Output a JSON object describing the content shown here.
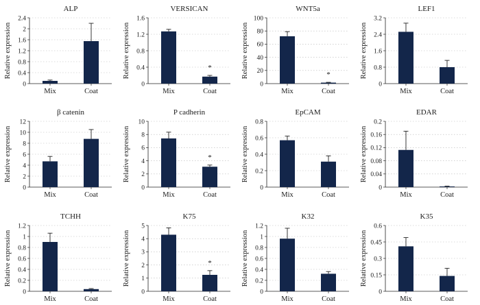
{
  "chart_data": [
    {
      "type": "bar",
      "title": "ALP",
      "ylabel": "Relative expression",
      "categories": [
        "Mix",
        "Coat"
      ],
      "values": [
        0.1,
        1.55
      ],
      "errors": [
        0.03,
        0.65
      ],
      "ylim": [
        0,
        2.4
      ],
      "ticks": [
        "0",
        "0.4",
        "0.8",
        "1.2",
        "1.6",
        "2",
        "2.4"
      ],
      "significance": [
        "",
        ""
      ],
      "grid": true
    },
    {
      "type": "bar",
      "title": "VERSICAN",
      "ylabel": "Relative expression",
      "categories": [
        "Mix",
        "Coat"
      ],
      "values": [
        1.27,
        0.17
      ],
      "errors": [
        0.05,
        0.03
      ],
      "ylim": [
        0,
        1.6
      ],
      "ticks": [
        "0",
        "0.4",
        "0.8",
        "1.2",
        "1.6"
      ],
      "significance": [
        "",
        "*"
      ],
      "grid": true
    },
    {
      "type": "bar",
      "title": "WNT5a",
      "ylabel": "Relative expression",
      "categories": [
        "Mix",
        "Coat"
      ],
      "values": [
        72,
        1.5
      ],
      "errors": [
        7,
        0.5
      ],
      "ylim": [
        0,
        100
      ],
      "ticks": [
        "0",
        "20",
        "40",
        "60",
        "80",
        "100"
      ],
      "significance": [
        "",
        "*"
      ],
      "grid": true
    },
    {
      "type": "bar",
      "title": "LEF1",
      "ylabel": "Relative expression",
      "categories": [
        "Mix",
        "Coat"
      ],
      "values": [
        2.52,
        0.8
      ],
      "errors": [
        0.42,
        0.33
      ],
      "ylim": [
        0,
        3.2
      ],
      "ticks": [
        "0",
        "0.8",
        "1.6",
        "2.4",
        "3.2"
      ],
      "significance": [
        "",
        ""
      ],
      "grid": true
    },
    {
      "type": "bar",
      "title": "β catenin",
      "ylabel": "Relative expression",
      "categories": [
        "Mix",
        "Coat"
      ],
      "values": [
        4.7,
        8.8
      ],
      "errors": [
        0.9,
        1.7
      ],
      "ylim": [
        0,
        12
      ],
      "ticks": [
        "0",
        "2",
        "4",
        "6",
        "8",
        "10",
        "12"
      ],
      "significance": [
        "",
        ""
      ],
      "grid": true
    },
    {
      "type": "bar",
      "title": "P cadherin",
      "ylabel": "Relative expression",
      "categories": [
        "Mix",
        "Coat"
      ],
      "values": [
        7.4,
        3.1
      ],
      "errors": [
        0.95,
        0.25
      ],
      "ylim": [
        0,
        10
      ],
      "ticks": [
        "0",
        "2",
        "4",
        "6",
        "8",
        "10"
      ],
      "significance": [
        "",
        "*"
      ],
      "grid": true
    },
    {
      "type": "bar",
      "title": "EpCAM",
      "ylabel": "Relative expression",
      "categories": [
        "Mix",
        "Coat"
      ],
      "values": [
        0.57,
        0.31
      ],
      "errors": [
        0.05,
        0.07
      ],
      "ylim": [
        0,
        0.8
      ],
      "ticks": [
        "0",
        "0.2",
        "0.4",
        "0.6",
        "0.8"
      ],
      "significance": [
        "",
        ""
      ],
      "grid": true
    },
    {
      "type": "bar",
      "title": "EDAR",
      "ylabel": "Relative expression",
      "categories": [
        "Mix",
        "Coat"
      ],
      "values": [
        0.113,
        0.002
      ],
      "errors": [
        0.057,
        0.001
      ],
      "ylim": [
        0,
        0.2
      ],
      "ticks": [
        "0",
        "0.04",
        "0.08",
        "0.12",
        "0.16",
        "0.2"
      ],
      "significance": [
        "",
        ""
      ],
      "grid": true
    },
    {
      "type": "bar",
      "title": "TCHH",
      "ylabel": "Relative expression",
      "categories": [
        "Mix",
        "Coat"
      ],
      "values": [
        0.9,
        0.04
      ],
      "errors": [
        0.16,
        0.01
      ],
      "ylim": [
        0,
        1.2
      ],
      "ticks": [
        "0",
        "0.2",
        "0.4",
        "0.6",
        "0.8",
        "1",
        "1.2"
      ],
      "significance": [
        "",
        ""
      ],
      "grid": true
    },
    {
      "type": "bar",
      "title": "K75",
      "ylabel": "Relative expression",
      "categories": [
        "Mix",
        "Coat"
      ],
      "values": [
        4.3,
        1.25
      ],
      "errors": [
        0.52,
        0.32
      ],
      "ylim": [
        0,
        5
      ],
      "ticks": [
        "0",
        "1",
        "2",
        "3",
        "4",
        "5"
      ],
      "significance": [
        "",
        "*"
      ],
      "grid": true
    },
    {
      "type": "bar",
      "title": "K32",
      "ylabel": "Relative expression",
      "categories": [
        "Mix",
        "Coat"
      ],
      "values": [
        0.96,
        0.32
      ],
      "errors": [
        0.19,
        0.04
      ],
      "ylim": [
        0,
        1.2
      ],
      "ticks": [
        "0",
        "0.2",
        "0.4",
        "0.6",
        "0.8",
        "1",
        "1.2"
      ],
      "significance": [
        "",
        ""
      ],
      "grid": true
    },
    {
      "type": "bar",
      "title": "K35",
      "ylabel": "Relative expression",
      "categories": [
        "Mix",
        "Coat"
      ],
      "values": [
        0.41,
        0.14
      ],
      "errors": [
        0.08,
        0.07
      ],
      "ylim": [
        0,
        0.6
      ],
      "ticks": [
        "0",
        "0.15",
        "0.3",
        "0.45",
        "0.6"
      ],
      "significance": [
        "",
        ""
      ],
      "grid": true
    }
  ],
  "colors": {
    "bar": "#13264a",
    "axis": "#222222",
    "grid": "#b8b8b8",
    "text": "#1a1a1a"
  }
}
